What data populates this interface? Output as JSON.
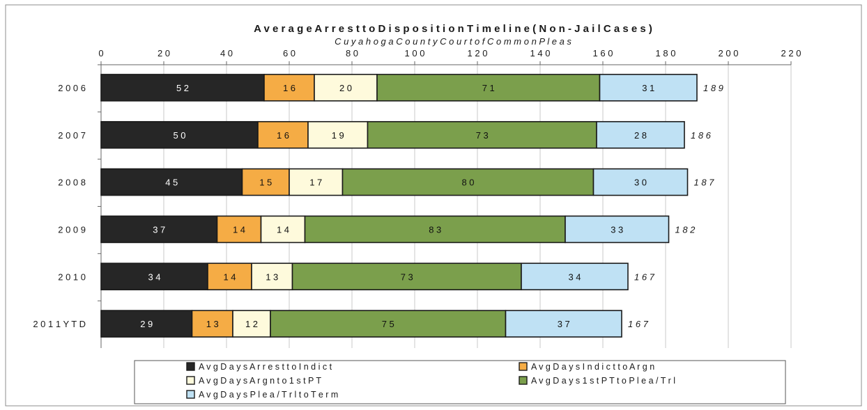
{
  "chart_data": {
    "type": "bar",
    "orientation": "horizontal",
    "stacked": true,
    "title": "A v e r a g e   A r r e s t  t o   D i s p o s i t i o n   T i m e l i n e  ( N o n  -  J a i l  C a s e s )",
    "subtitle": "C u y a h o g a   C o u n t y   C o u r t  o f  C o m m o n   P l e a s",
    "categories": [
      "2 0 0 6",
      "2 0 0 7",
      "2 0 0 8",
      "2 0 0 9",
      "2 0 1 0",
      "2 0 1 1  Y T D"
    ],
    "series": [
      {
        "name": "A v g  D a y s  A r r e s t  t o  I n d i c t",
        "values": [
          52,
          50,
          45,
          37,
          34,
          29
        ],
        "color": "#262626",
        "label_color": "#ffffff"
      },
      {
        "name": "A v g  D a y s  I n d i c t  t o  A r g n",
        "values": [
          16,
          16,
          15,
          14,
          14,
          13
        ],
        "color": "#f5ac45",
        "label_color": "#111111"
      },
      {
        "name": "A v g  D a y s  A r g n  t o  1 s t  P T",
        "values": [
          20,
          19,
          17,
          14,
          13,
          12
        ],
        "color": "#fefadc",
        "label_color": "#111111"
      },
      {
        "name": "A v g  D a y s  1 s t  P T  t o  P l e a / T r l",
        "values": [
          71,
          73,
          80,
          83,
          73,
          75
        ],
        "color": "#7b9f4c",
        "label_color": "#111111"
      },
      {
        "name": "A v g  D a y s  P l e a / T r l  t o  T e r m",
        "values": [
          31,
          28,
          30,
          33,
          34,
          37
        ],
        "color": "#bfe1f4",
        "label_color": "#111111"
      }
    ],
    "totals": [
      189,
      186,
      187,
      182,
      167,
      167
    ],
    "xlim": [
      0,
      220
    ],
    "xticks": [
      0,
      20,
      40,
      60,
      80,
      100,
      120,
      140,
      160,
      180,
      200,
      220
    ],
    "xtick_labels": [
      "0",
      "2 0",
      "4 0",
      "6 0",
      "8 0",
      "1 0 0",
      "1 2 0",
      "1 4 0",
      "1 6 0",
      "1 8 0",
      "2 0 0",
      "2 2 0"
    ],
    "xaxis_position": "top",
    "grid": true,
    "legend": "bottom"
  }
}
